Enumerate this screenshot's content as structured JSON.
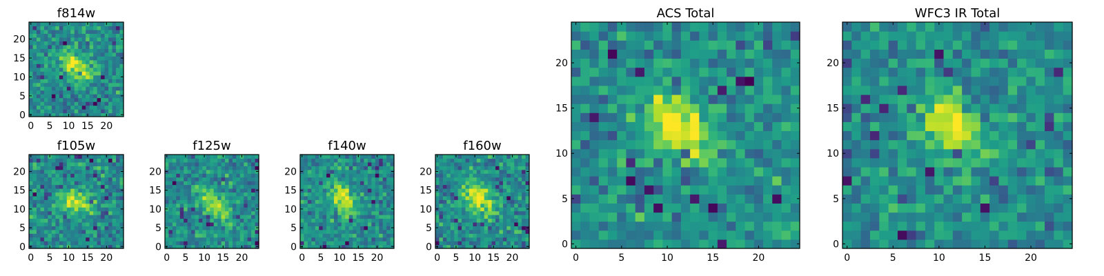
{
  "chart_data": [
    {
      "type": "heatmap",
      "title": "f814w",
      "cmap": "viridis",
      "grid_size": 25,
      "seed": 11,
      "blob": {
        "cx": 12,
        "cy": 13,
        "sx": 3.2,
        "sy": 1.8,
        "angle": -0.75,
        "amp": 0.55
      },
      "xlim": [
        -0.5,
        24.5
      ],
      "ylim": [
        -0.5,
        24.5
      ],
      "xticks": [
        0,
        5,
        10,
        15,
        20
      ],
      "yticks": [
        0,
        5,
        10,
        15,
        20
      ],
      "xtick_labels": [
        "0",
        "5",
        "10",
        "15",
        "20"
      ],
      "ytick_labels": [
        "0",
        "5",
        "10",
        "15",
        "20"
      ]
    },
    {
      "type": "heatmap",
      "title": "f105w",
      "cmap": "viridis",
      "grid_size": 25,
      "seed": 23,
      "blob": {
        "cx": 12,
        "cy": 12,
        "sx": 3.0,
        "sy": 2.2,
        "angle": -0.4,
        "amp": 0.45
      },
      "xlim": [
        -0.5,
        24.5
      ],
      "ylim": [
        -0.5,
        24.5
      ],
      "xticks": [
        0,
        5,
        10,
        15,
        20
      ],
      "yticks": [
        0,
        5,
        10,
        15,
        20
      ],
      "xtick_labels": [
        "0",
        "5",
        "10",
        "15",
        "20"
      ],
      "ytick_labels": [
        "0",
        "5",
        "10",
        "15",
        "20"
      ]
    },
    {
      "type": "heatmap",
      "title": "f125w",
      "cmap": "viridis",
      "grid_size": 25,
      "seed": 37,
      "blob": {
        "cx": 13,
        "cy": 11,
        "sx": 4.5,
        "sy": 1.8,
        "angle": -0.9,
        "amp": 0.35
      },
      "xlim": [
        -0.5,
        24.5
      ],
      "ylim": [
        -0.5,
        24.5
      ],
      "xticks": [
        0,
        5,
        10,
        15,
        20
      ],
      "yticks": [
        0,
        5,
        10,
        15,
        20
      ],
      "xtick_labels": [
        "0",
        "5",
        "10",
        "15",
        "20"
      ],
      "ytick_labels": [
        "0",
        "5",
        "10",
        "15",
        "20"
      ]
    },
    {
      "type": "heatmap",
      "title": "f140w",
      "cmap": "viridis",
      "grid_size": 25,
      "seed": 41,
      "blob": {
        "cx": 11,
        "cy": 13,
        "sx": 3.4,
        "sy": 2.0,
        "angle": -0.9,
        "amp": 0.5
      },
      "xlim": [
        -0.5,
        24.5
      ],
      "ylim": [
        -0.5,
        24.5
      ],
      "xticks": [
        0,
        5,
        10,
        15,
        20
      ],
      "yticks": [
        0,
        5,
        10,
        15,
        20
      ],
      "xtick_labels": [
        "0",
        "5",
        "10",
        "15",
        "20"
      ],
      "ytick_labels": [
        "0",
        "5",
        "10",
        "15",
        "20"
      ]
    },
    {
      "type": "heatmap",
      "title": "f160w",
      "cmap": "viridis",
      "grid_size": 25,
      "seed": 53,
      "blob": {
        "cx": 11,
        "cy": 13,
        "sx": 3.4,
        "sy": 2.0,
        "angle": -0.9,
        "amp": 0.55
      },
      "xlim": [
        -0.5,
        24.5
      ],
      "ylim": [
        -0.5,
        24.5
      ],
      "xticks": [
        0,
        5,
        10,
        15,
        20
      ],
      "yticks": [
        0,
        5,
        10,
        15,
        20
      ],
      "xtick_labels": [
        "0",
        "5",
        "10",
        "15",
        "20"
      ],
      "ytick_labels": [
        "0",
        "5",
        "10",
        "15",
        "20"
      ]
    },
    {
      "type": "heatmap",
      "title": "ACS Total",
      "cmap": "viridis",
      "grid_size": 25,
      "seed": 67,
      "blob": {
        "cx": 11.5,
        "cy": 13,
        "sx": 3.0,
        "sy": 1.8,
        "angle": -0.7,
        "amp": 0.6
      },
      "xlim": [
        -0.5,
        24.5
      ],
      "ylim": [
        -0.5,
        24.5
      ],
      "xticks": [
        0,
        5,
        10,
        15,
        20
      ],
      "yticks": [
        0,
        5,
        10,
        15,
        20
      ],
      "xtick_labels": [
        "0",
        "5",
        "10",
        "15",
        "20"
      ],
      "ytick_labels": [
        "0",
        "5",
        "10",
        "15",
        "20"
      ]
    },
    {
      "type": "heatmap",
      "title": "WFC3 IR Total",
      "cmap": "viridis",
      "grid_size": 25,
      "seed": 79,
      "blob": {
        "cx": 11.5,
        "cy": 13,
        "sx": 2.6,
        "sy": 1.7,
        "angle": -0.8,
        "amp": 0.6
      },
      "xlim": [
        -0.5,
        24.5
      ],
      "ylim": [
        -0.5,
        24.5
      ],
      "xticks": [
        0,
        5,
        10,
        15,
        20
      ],
      "yticks": [
        0,
        5,
        10,
        15,
        20
      ],
      "xtick_labels": [
        "0",
        "5",
        "10",
        "15",
        "20"
      ],
      "ytick_labels": [
        "0",
        "5",
        "10",
        "15",
        "20"
      ]
    }
  ]
}
